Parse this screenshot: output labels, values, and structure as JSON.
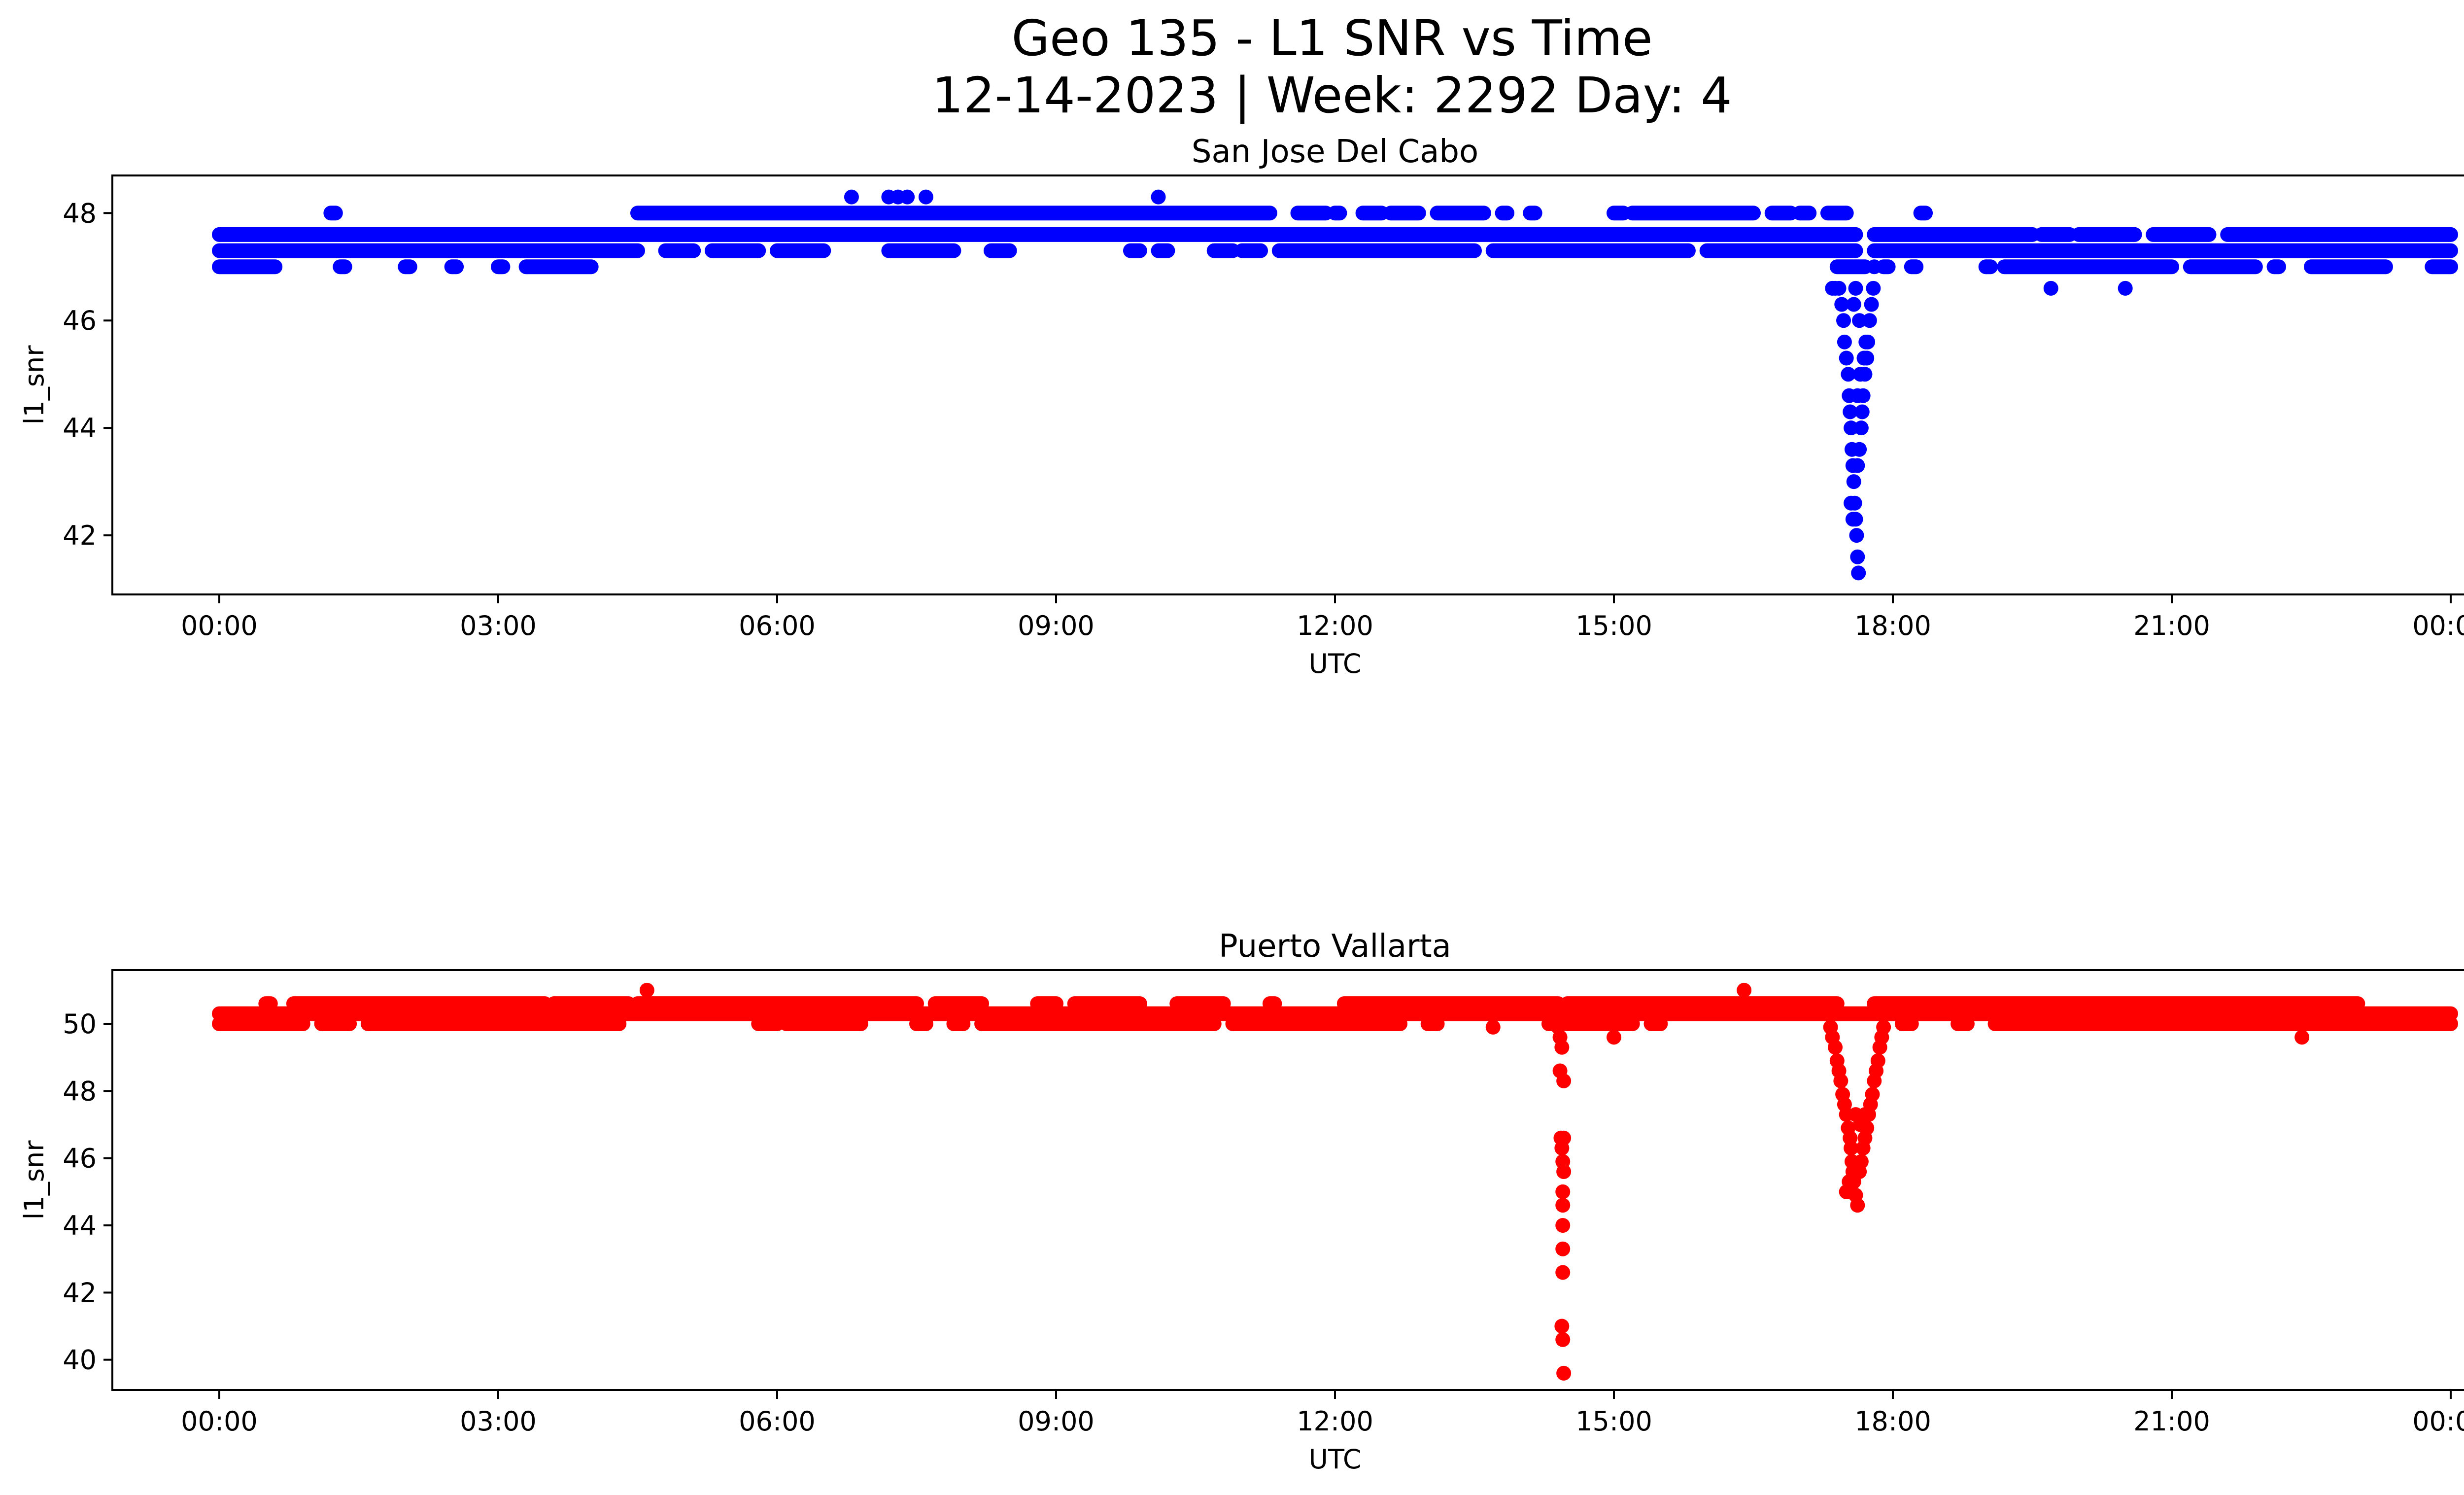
{
  "figure": {
    "title_line1": "Geo 135 - L1 SNR vs Time",
    "title_line2": "12-14-2023 | Week: 2292 Day: 4"
  },
  "chart_data": [
    {
      "type": "scatter",
      "title": "San Jose Del Cabo",
      "xlabel": "UTC",
      "ylabel": "l1_snr",
      "color": "#0000ff",
      "x_unit": "hours UTC",
      "xlim": [
        -1.15,
        25.15
      ],
      "ylim": [
        40.9,
        48.7
      ],
      "x_ticks": [
        0,
        3,
        6,
        9,
        12,
        15,
        18,
        21,
        24
      ],
      "x_tick_labels": [
        "00:00",
        "03:00",
        "06:00",
        "09:00",
        "12:00",
        "15:00",
        "18:00",
        "21:00",
        "00:00"
      ],
      "y_ticks": [
        42,
        44,
        46,
        48
      ],
      "y_tick_labels": [
        "42",
        "44",
        "46",
        "48"
      ],
      "series": [
        {
          "bands": [
            {
              "y": 47.0,
              "segments": [
                [
                  0.0,
                  0.6
                ],
                [
                  1.3,
                  1.35
                ],
                [
                  2.0,
                  2.05
                ],
                [
                  2.5,
                  2.55
                ],
                [
                  3.0,
                  3.05
                ],
                [
                  3.3,
                  4.0
                ],
                [
                  17.4,
                  17.7
                ],
                [
                  17.9,
                  17.95
                ],
                [
                  18.2,
                  18.25
                ],
                [
                  19.0,
                  19.05
                ],
                [
                  19.2,
                  21.0
                ],
                [
                  21.2,
                  21.9
                ],
                [
                  22.1,
                  22.15
                ],
                [
                  22.5,
                  23.3
                ],
                [
                  23.8,
                  24.0
                ]
              ]
            },
            {
              "y": 47.3,
              "segments": [
                [
                  0.0,
                  4.5
                ],
                [
                  4.8,
                  5.1
                ],
                [
                  5.3,
                  5.8
                ],
                [
                  6.0,
                  6.5
                ],
                [
                  7.2,
                  7.9
                ],
                [
                  8.3,
                  8.5
                ],
                [
                  9.8,
                  9.9
                ],
                [
                  10.1,
                  10.2
                ],
                [
                  10.7,
                  10.9
                ],
                [
                  11.0,
                  11.2
                ],
                [
                  11.4,
                  13.5
                ],
                [
                  13.7,
                  15.8
                ],
                [
                  16.0,
                  17.6
                ],
                [
                  17.8,
                  24.0
                ]
              ]
            },
            {
              "y": 47.6,
              "segments": [
                [
                  0.0,
                  17.6
                ],
                [
                  17.8,
                  19.5
                ],
                [
                  19.6,
                  19.9
                ],
                [
                  20.0,
                  20.6
                ],
                [
                  20.8,
                  21.4
                ],
                [
                  21.6,
                  24.0
                ]
              ]
            },
            {
              "y": 48.0,
              "segments": [
                [
                  1.2,
                  1.25
                ],
                [
                  4.5,
                  11.3
                ],
                [
                  11.6,
                  11.9
                ],
                [
                  12.0,
                  12.05
                ],
                [
                  12.3,
                  12.5
                ],
                [
                  12.6,
                  12.9
                ],
                [
                  13.1,
                  13.6
                ],
                [
                  13.8,
                  13.85
                ],
                [
                  14.1,
                  14.15
                ],
                [
                  15.0,
                  15.1
                ],
                [
                  15.2,
                  16.5
                ],
                [
                  16.7,
                  16.9
                ],
                [
                  17.0,
                  17.1
                ],
                [
                  17.3,
                  17.5
                ],
                [
                  18.3,
                  18.35
                ]
              ]
            }
          ],
          "points": [
            [
              6.8,
              48.3
            ],
            [
              7.2,
              48.3
            ],
            [
              7.3,
              48.3
            ],
            [
              7.4,
              48.3
            ],
            [
              7.6,
              48.3
            ],
            [
              10.1,
              48.3
            ],
            [
              19.7,
              46.6
            ],
            [
              20.5,
              46.6
            ],
            [
              17.35,
              46.6
            ],
            [
              17.38,
              46.6
            ],
            [
              17.42,
              46.6
            ],
            [
              17.45,
              46.3
            ],
            [
              17.47,
              46.0
            ],
            [
              17.48,
              45.6
            ],
            [
              17.5,
              45.3
            ],
            [
              17.52,
              45.0
            ],
            [
              17.53,
              44.6
            ],
            [
              17.54,
              44.3
            ],
            [
              17.55,
              44.0
            ],
            [
              17.56,
              43.6
            ],
            [
              17.57,
              43.3
            ],
            [
              17.58,
              43.0
            ],
            [
              17.59,
              42.6
            ],
            [
              17.6,
              42.3
            ],
            [
              17.61,
              42.0
            ],
            [
              17.62,
              41.6
            ],
            [
              17.63,
              41.3
            ],
            [
              17.55,
              42.6
            ],
            [
              17.57,
              42.3
            ],
            [
              17.62,
              43.3
            ],
            [
              17.64,
              43.6
            ],
            [
              17.66,
              44.0
            ],
            [
              17.67,
              44.3
            ],
            [
              17.68,
              44.6
            ],
            [
              17.7,
              45.0
            ],
            [
              17.72,
              45.3
            ],
            [
              17.73,
              45.6
            ],
            [
              17.75,
              46.0
            ],
            [
              17.77,
              46.3
            ],
            [
              17.79,
              46.6
            ],
            [
              17.8,
              47.0
            ],
            [
              17.62,
              44.6
            ],
            [
              17.65,
              45.0
            ],
            [
              17.69,
              45.3
            ],
            [
              17.71,
              45.6
            ],
            [
              17.6,
              46.6
            ],
            [
              17.58,
              46.3
            ],
            [
              17.64,
              46.0
            ]
          ]
        }
      ]
    },
    {
      "type": "scatter",
      "title": "Puerto Vallarta",
      "xlabel": "UTC",
      "ylabel": "l1_snr",
      "color": "#ff0000",
      "x_unit": "hours UTC",
      "xlim": [
        -1.15,
        25.15
      ],
      "ylim": [
        39.1,
        51.6
      ],
      "x_ticks": [
        0,
        3,
        6,
        9,
        12,
        15,
        18,
        21,
        24
      ],
      "x_tick_labels": [
        "00:00",
        "03:00",
        "06:00",
        "09:00",
        "12:00",
        "15:00",
        "18:00",
        "21:00",
        "00:00"
      ],
      "y_ticks": [
        40,
        42,
        44,
        46,
        48,
        50
      ],
      "y_tick_labels": [
        "40",
        "42",
        "44",
        "46",
        "48",
        "50"
      ],
      "series": [
        {
          "bands": [
            {
              "y": 50.0,
              "segments": [
                [
                  0.0,
                  0.9
                ],
                [
                  1.1,
                  1.4
                ],
                [
                  1.6,
                  4.3
                ],
                [
                  5.8,
                  6.0
                ],
                [
                  6.1,
                  6.9
                ],
                [
                  7.5,
                  7.6
                ],
                [
                  7.9,
                  8.0
                ],
                [
                  8.2,
                  10.7
                ],
                [
                  10.9,
                  12.7
                ],
                [
                  13.0,
                  13.1
                ],
                [
                  14.3,
                  14.4
                ],
                [
                  14.5,
                  15.2
                ],
                [
                  15.4,
                  15.5
                ],
                [
                  18.1,
                  18.2
                ],
                [
                  18.7,
                  18.8
                ],
                [
                  19.1,
                  24.0
                ]
              ]
            },
            {
              "y": 50.3,
              "segments": [
                [
                  0.0,
                  24.0
                ]
              ]
            },
            {
              "y": 50.6,
              "segments": [
                [
                  0.5,
                  0.55
                ],
                [
                  0.8,
                  3.5
                ],
                [
                  3.6,
                  4.4
                ],
                [
                  4.5,
                  7.5
                ],
                [
                  7.7,
                  8.2
                ],
                [
                  8.8,
                  9.0
                ],
                [
                  9.2,
                  9.9
                ],
                [
                  10.3,
                  10.8
                ],
                [
                  11.3,
                  11.35
                ],
                [
                  12.1,
                  14.4
                ],
                [
                  14.5,
                  17.4
                ],
                [
                  17.8,
                  23.0
                ]
              ]
            }
          ],
          "points": [
            [
              4.6,
              51.0
            ],
            [
              16.4,
              51.0
            ],
            [
              13.7,
              49.9
            ],
            [
              15.0,
              49.6
            ],
            [
              22.4,
              49.6
            ],
            [
              14.4,
              49.9
            ],
            [
              14.42,
              49.6
            ],
            [
              14.44,
              49.3
            ],
            [
              14.42,
              48.6
            ],
            [
              14.46,
              48.3
            ],
            [
              14.43,
              46.6
            ],
            [
              14.46,
              46.6
            ],
            [
              14.44,
              46.3
            ],
            [
              14.45,
              45.9
            ],
            [
              14.46,
              45.6
            ],
            [
              14.45,
              45.0
            ],
            [
              14.45,
              44.6
            ],
            [
              14.45,
              44.0
            ],
            [
              14.45,
              43.3
            ],
            [
              14.45,
              42.6
            ],
            [
              14.44,
              41.0
            ],
            [
              14.45,
              40.6
            ],
            [
              14.46,
              39.6
            ],
            [
              17.3,
              50.3
            ],
            [
              17.33,
              49.9
            ],
            [
              17.35,
              49.6
            ],
            [
              17.38,
              49.3
            ],
            [
              17.4,
              48.9
            ],
            [
              17.42,
              48.6
            ],
            [
              17.44,
              48.3
            ],
            [
              17.46,
              47.9
            ],
            [
              17.48,
              47.6
            ],
            [
              17.5,
              47.3
            ],
            [
              17.52,
              46.9
            ],
            [
              17.54,
              46.6
            ],
            [
              17.55,
              46.3
            ],
            [
              17.56,
              45.9
            ],
            [
              17.57,
              45.6
            ],
            [
              17.58,
              45.3
            ],
            [
              17.6,
              44.9
            ],
            [
              17.62,
              44.6
            ],
            [
              17.5,
              45.0
            ],
            [
              17.53,
              45.3
            ],
            [
              17.64,
              45.6
            ],
            [
              17.66,
              45.9
            ],
            [
              17.68,
              46.3
            ],
            [
              17.7,
              46.6
            ],
            [
              17.72,
              46.9
            ],
            [
              17.74,
              47.3
            ],
            [
              17.76,
              47.6
            ],
            [
              17.78,
              47.9
            ],
            [
              17.8,
              48.3
            ],
            [
              17.82,
              48.6
            ],
            [
              17.84,
              48.9
            ],
            [
              17.86,
              49.3
            ],
            [
              17.88,
              49.6
            ],
            [
              17.9,
              49.9
            ],
            [
              17.93,
              50.3
            ],
            [
              17.6,
              47.3
            ],
            [
              17.65,
              47.0
            ],
            [
              17.7,
              47.3
            ]
          ]
        }
      ]
    }
  ]
}
